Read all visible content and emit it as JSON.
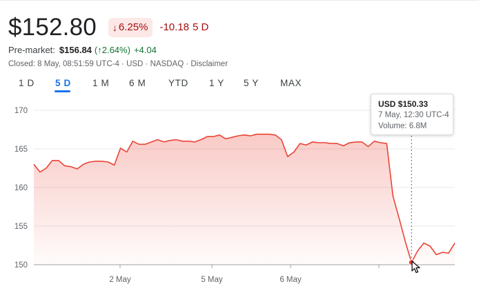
{
  "quote": {
    "price": "$152.80",
    "pct_change": "6.25%",
    "abs_change": "-10.18",
    "period": "5 D",
    "down_arrow": "arrow-down-icon"
  },
  "premarket": {
    "label": "Pre-market:",
    "price": "$156.84",
    "pct": "(↑2.64%)",
    "abs": "+4.04"
  },
  "closed_line": "Closed: 8 May, 08:51:59 UTC-4 · USD · NASDAQ · Disclaimer",
  "ranges": [
    {
      "label": "1 D"
    },
    {
      "label": "5 D",
      "active": true
    },
    {
      "label": "1 M"
    },
    {
      "label": "6 M"
    },
    {
      "label": "YTD"
    },
    {
      "label": "1 Y"
    },
    {
      "label": "5 Y"
    },
    {
      "label": "MAX"
    }
  ],
  "tooltip": {
    "price": "USD $150.33",
    "time": "7 May, 12:30 UTC-4",
    "volume": "Volume: 6.8M"
  },
  "colors": {
    "down": "#a50e0e",
    "down_badge_bg": "#fce8e6",
    "up": "#137333",
    "line": "#ea4335",
    "active_tab": "#1a73e8"
  },
  "chart_data": {
    "type": "area",
    "ylim": [
      150,
      170
    ],
    "y_ticks": [
      "170",
      "165",
      "160",
      "155",
      "150"
    ],
    "x_ticks": [
      "2 May",
      "5 May",
      "6 May"
    ],
    "grid": true,
    "title": "",
    "xlabel": "",
    "ylabel": "",
    "series": [
      {
        "values": [
          163.0,
          162.0,
          162.5,
          163.5,
          163.5,
          162.8,
          162.7,
          162.4,
          163.0,
          163.3,
          163.4,
          163.4,
          163.3,
          162.9,
          165.1,
          164.6,
          166.0,
          165.6,
          165.6,
          165.9,
          166.2,
          165.9,
          166.1,
          166.2,
          166.0,
          166.0,
          165.9,
          166.2,
          166.6,
          166.6,
          166.8,
          166.3,
          166.5,
          166.7,
          166.8,
          166.7,
          166.9,
          166.9,
          166.9,
          166.8,
          166.2,
          164.0,
          164.6,
          165.7,
          165.5,
          165.9,
          165.8,
          165.8,
          165.7,
          165.7,
          165.4,
          165.8,
          165.9,
          165.9,
          165.3,
          166.0,
          165.8,
          165.7,
          158.9,
          156.0,
          153.0,
          150.3,
          151.8,
          152.8,
          152.4,
          151.3,
          151.6,
          151.5,
          152.8
        ]
      }
    ],
    "highlight_index": 61
  }
}
